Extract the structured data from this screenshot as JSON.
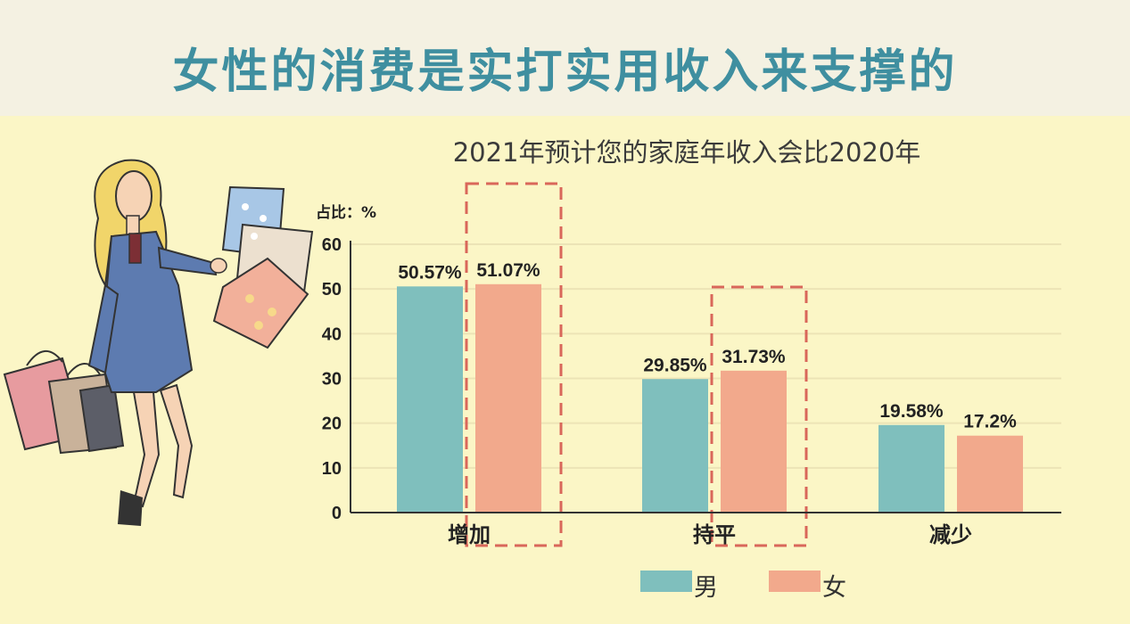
{
  "header": {
    "title": "女性的消费是实打实用收入来支撑的"
  },
  "chart_data": {
    "type": "bar",
    "title": "2021年预计您的家庭年收入会比2020年",
    "ylabel": "占比：%",
    "xlabel": "",
    "categories": [
      "增加",
      "持平",
      "减少"
    ],
    "series": [
      {
        "name": "男",
        "values": [
          50.57,
          29.85,
          19.58
        ],
        "labels": [
          "50.57%",
          "29.85%",
          "19.58%"
        ],
        "color": "#7fbfbd"
      },
      {
        "name": "女",
        "values": [
          51.07,
          31.73,
          17.2
        ],
        "labels": [
          "51.07%",
          "31.73%",
          "17.2%"
        ],
        "color": "#f2a98c"
      }
    ],
    "ylim": [
      0,
      60
    ],
    "yticks": [
      0,
      10,
      20,
      30,
      40,
      50,
      60
    ],
    "grid": true,
    "legend": "bottom",
    "highlighted_series": "女",
    "highlighted_categories": [
      "增加",
      "持平"
    ],
    "highlight_color": "#d9675a"
  }
}
